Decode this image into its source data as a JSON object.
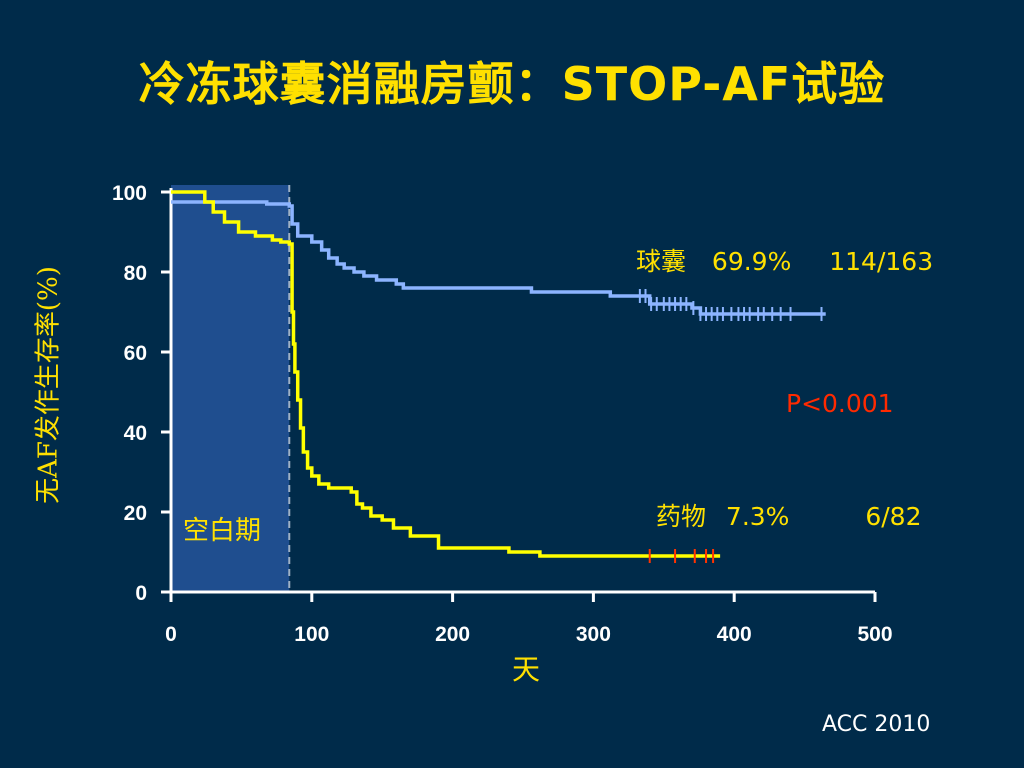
{
  "slide": {
    "title": "冷冻球囊消融房颤：STOP-AF试验",
    "footer": "ACC 2010"
  },
  "colors": {
    "background": "#002b4a",
    "title": "#ffe000",
    "balloon_series": "#8cb4ff",
    "drug_series": "#ffff00",
    "blanking_region": "#1f4e8f",
    "p_value": "#ff2a00",
    "drug_censor_ticks": "#ff3300"
  },
  "chart_data": {
    "type": "line",
    "xlabel": "天",
    "ylabel": "无AF发作生存率(%)",
    "xlim": [
      0,
      500
    ],
    "ylim": [
      0,
      100
    ],
    "xticks": [
      "0",
      "100",
      "200",
      "300",
      "400",
      "500"
    ],
    "yticks": [
      "0",
      "20",
      "40",
      "60",
      "80",
      "100"
    ],
    "grid": false,
    "annotations": {
      "balloon_name": "球囊",
      "balloon_pct": "69.9%",
      "balloon_n": "114/163",
      "drug_name": "药物",
      "drug_pct": "7.3%",
      "drug_n": "6/82",
      "p_value": "P<0.001",
      "blanking_label": "空白期"
    },
    "blanking_period": [
      0,
      84
    ],
    "series": [
      {
        "name": "球囊",
        "color": "#8cb4ff",
        "x": [
          0,
          68,
          84,
          86,
          90,
          100,
          107,
          112,
          118,
          123,
          130,
          137,
          146,
          160,
          165,
          190,
          200,
          240,
          256,
          300,
          312,
          340,
          348,
          370,
          376,
          465
        ],
        "y": [
          97.5,
          97,
          96.5,
          92,
          89,
          87.5,
          85.5,
          83.5,
          82,
          81,
          80,
          79,
          78,
          77,
          76,
          76,
          76,
          76,
          75,
          75,
          74,
          72,
          72,
          71,
          69.5,
          69.5
        ],
        "censor_x": [
          333,
          337,
          341,
          345,
          350,
          354,
          358,
          362,
          366,
          371,
          376,
          380,
          384,
          388,
          392,
          398,
          403,
          407,
          411,
          417,
          421,
          427,
          433,
          440,
          462
        ]
      },
      {
        "name": "药物",
        "color": "#ffff00",
        "x": [
          0,
          24,
          30,
          38,
          48,
          60,
          72,
          78,
          84,
          86,
          87,
          88,
          90,
          92,
          94,
          97,
          100,
          105,
          112,
          128,
          132,
          136,
          142,
          150,
          158,
          170,
          190,
          240,
          262,
          270,
          390
        ],
        "y": [
          100,
          97.5,
          95,
          92.5,
          90,
          89,
          88,
          87.5,
          87,
          70,
          62,
          55,
          48,
          41,
          35,
          31,
          29,
          27,
          26,
          25,
          22,
          21,
          19,
          18,
          16,
          14,
          11,
          10,
          9,
          9,
          9
        ],
        "censor_x": [
          340,
          358,
          372,
          380,
          385
        ]
      }
    ]
  }
}
